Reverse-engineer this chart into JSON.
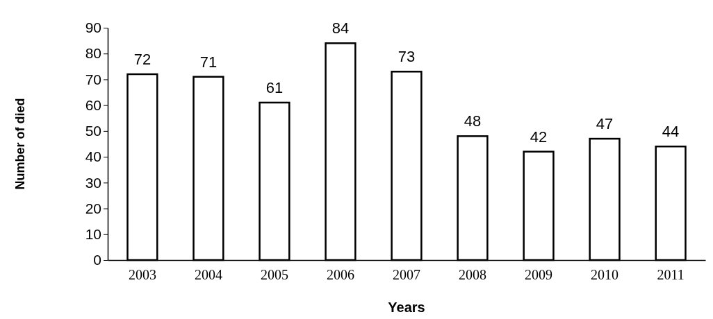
{
  "chart_data": {
    "type": "bar",
    "xlabel": "Years",
    "ylabel": "Number of died",
    "categories": [
      "2003",
      "2004",
      "2005",
      "2006",
      "2007",
      "2008",
      "2009",
      "2010",
      "2011"
    ],
    "values": [
      72,
      71,
      61,
      84,
      73,
      48,
      42,
      47,
      44
    ],
    "color": "#ffffff",
    "ylim": [
      0,
      90
    ],
    "yticks": [
      0,
      10,
      20,
      30,
      40,
      50,
      60,
      70,
      80,
      90
    ],
    "grid": false,
    "data_labels": true
  }
}
